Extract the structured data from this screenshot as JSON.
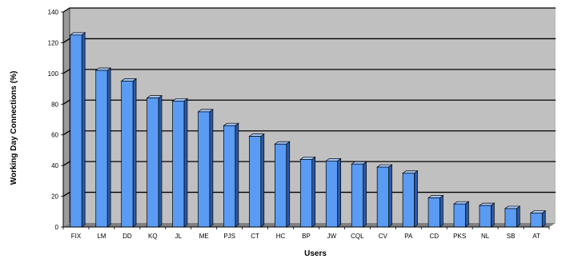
{
  "chart_data": {
    "type": "bar",
    "title": "",
    "xlabel": "Users",
    "ylabel": "Working Day Connections (%)",
    "ylim": [
      0,
      140
    ],
    "yticks": [
      0,
      20,
      40,
      60,
      80,
      100,
      120,
      140
    ],
    "grid": true,
    "legend": "none",
    "style": "3d",
    "colors": {
      "bar": "#5a9bf3",
      "bar_side": "#2a5aa8",
      "bar_top": "#a6c8fb",
      "plot_bg": "#c0c0c0",
      "grid": "#000000"
    },
    "categories": [
      "FIX",
      "LM",
      "DD",
      "KQ",
      "JL",
      "ME",
      "PJS",
      "CT",
      "HC",
      "BP",
      "JW",
      "CQL",
      "CV",
      "PA",
      "CD",
      "PKS",
      "NL",
      "SB",
      "AT"
    ],
    "values": [
      125,
      102,
      95,
      84,
      82,
      75,
      66,
      59,
      54,
      44,
      43,
      41,
      39,
      35,
      19,
      15,
      14,
      12,
      9
    ]
  }
}
